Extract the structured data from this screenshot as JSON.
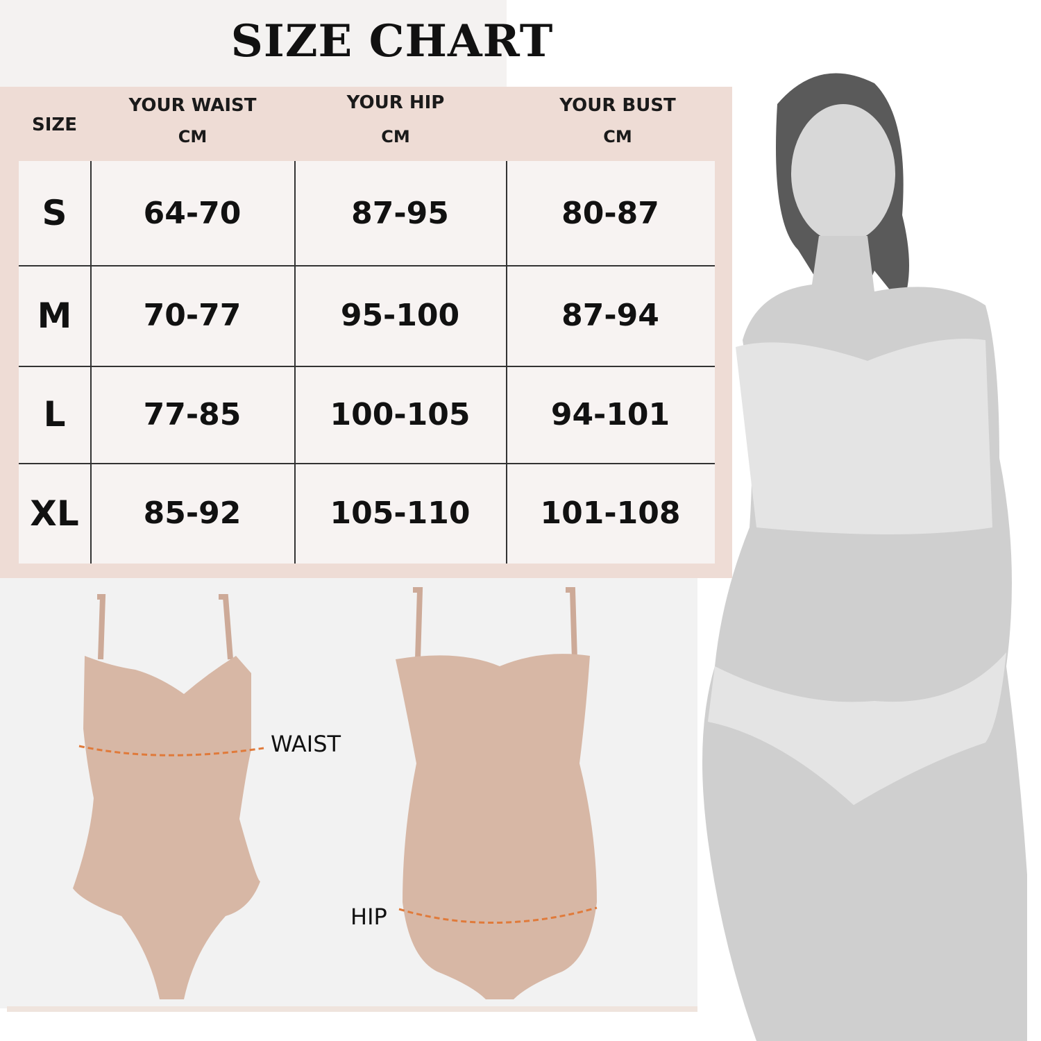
{
  "title": "SIZE CHART",
  "table": {
    "headers": [
      {
        "line1": "SIZE",
        "line2": ""
      },
      {
        "line1": "YOUR WAIST",
        "line2": "CM"
      },
      {
        "line1": "YOUR HIP",
        "line2": "CM"
      },
      {
        "line1": "YOUR BUST",
        "line2": "CM"
      }
    ],
    "rows": [
      [
        "S",
        "64-70",
        "87-95",
        "80-87"
      ],
      [
        "M",
        "70-77",
        "95-100",
        "87-94"
      ],
      [
        "L",
        "77-85",
        "100-105",
        "94-101"
      ],
      [
        "XL",
        "85-92",
        "105-110",
        "101-108"
      ]
    ]
  },
  "diagram": {
    "waist_label": "WAIST",
    "hip_label": "HIP"
  },
  "colors": {
    "panel": "#eedcd5",
    "garment": "#d7b7a5",
    "measure_line": "#e07a3a"
  }
}
